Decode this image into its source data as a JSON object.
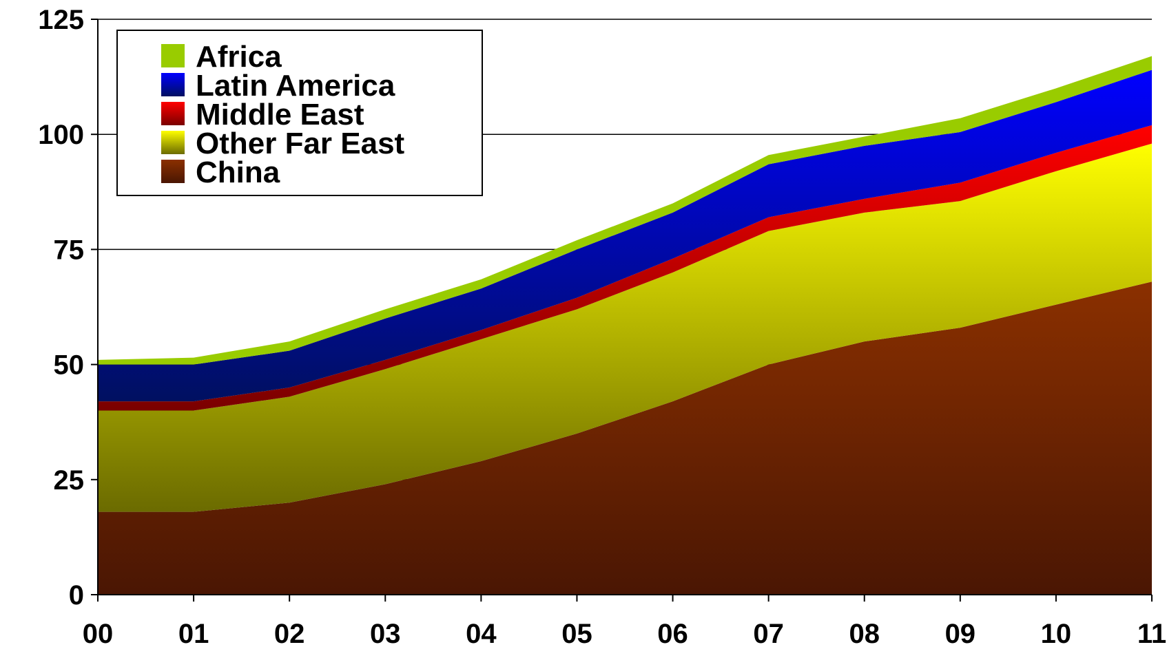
{
  "chart_data": {
    "type": "area",
    "stacked": true,
    "title": "",
    "xlabel": "",
    "ylabel": "",
    "categories": [
      "00",
      "01",
      "02",
      "03",
      "04",
      "05",
      "06",
      "07",
      "08",
      "09",
      "10",
      "11"
    ],
    "ylim": [
      0,
      125
    ],
    "yticks": [
      0,
      25,
      50,
      75,
      100,
      125
    ],
    "grid": "horizontal",
    "legend_position": "top-left",
    "series": [
      {
        "name": "China",
        "values": [
          18,
          18,
          20,
          24,
          29,
          35,
          42,
          50,
          55,
          58,
          63,
          68
        ],
        "color_top": "#8B3000",
        "color_bottom": "#4A1603"
      },
      {
        "name": "Other Far East",
        "values": [
          22,
          22,
          23,
          25,
          26.5,
          27,
          28,
          29,
          28,
          27.5,
          29,
          30
        ],
        "color_top": "#FFFF00",
        "color_bottom": "#6B6B00"
      },
      {
        "name": "Middle East",
        "values": [
          2,
          2,
          2,
          2,
          2,
          2.5,
          3,
          3,
          3,
          4,
          4,
          4
        ],
        "color_top": "#FF0000",
        "color_bottom": "#7A0000"
      },
      {
        "name": "Latin America",
        "values": [
          8,
          8,
          8,
          9,
          9,
          10.5,
          10,
          11.5,
          11.5,
          11,
          11,
          12
        ],
        "color_top": "#0000FF",
        "color_bottom": "#001060"
      },
      {
        "name": "Africa",
        "values": [
          1,
          1.5,
          2,
          2,
          2,
          2,
          2,
          2,
          2,
          3,
          3,
          3
        ],
        "color_top": "#99CC00",
        "color_bottom": "#99CC00"
      }
    ],
    "legend_order": [
      "Africa",
      "Latin America",
      "Middle East",
      "Other Far East",
      "China"
    ]
  }
}
